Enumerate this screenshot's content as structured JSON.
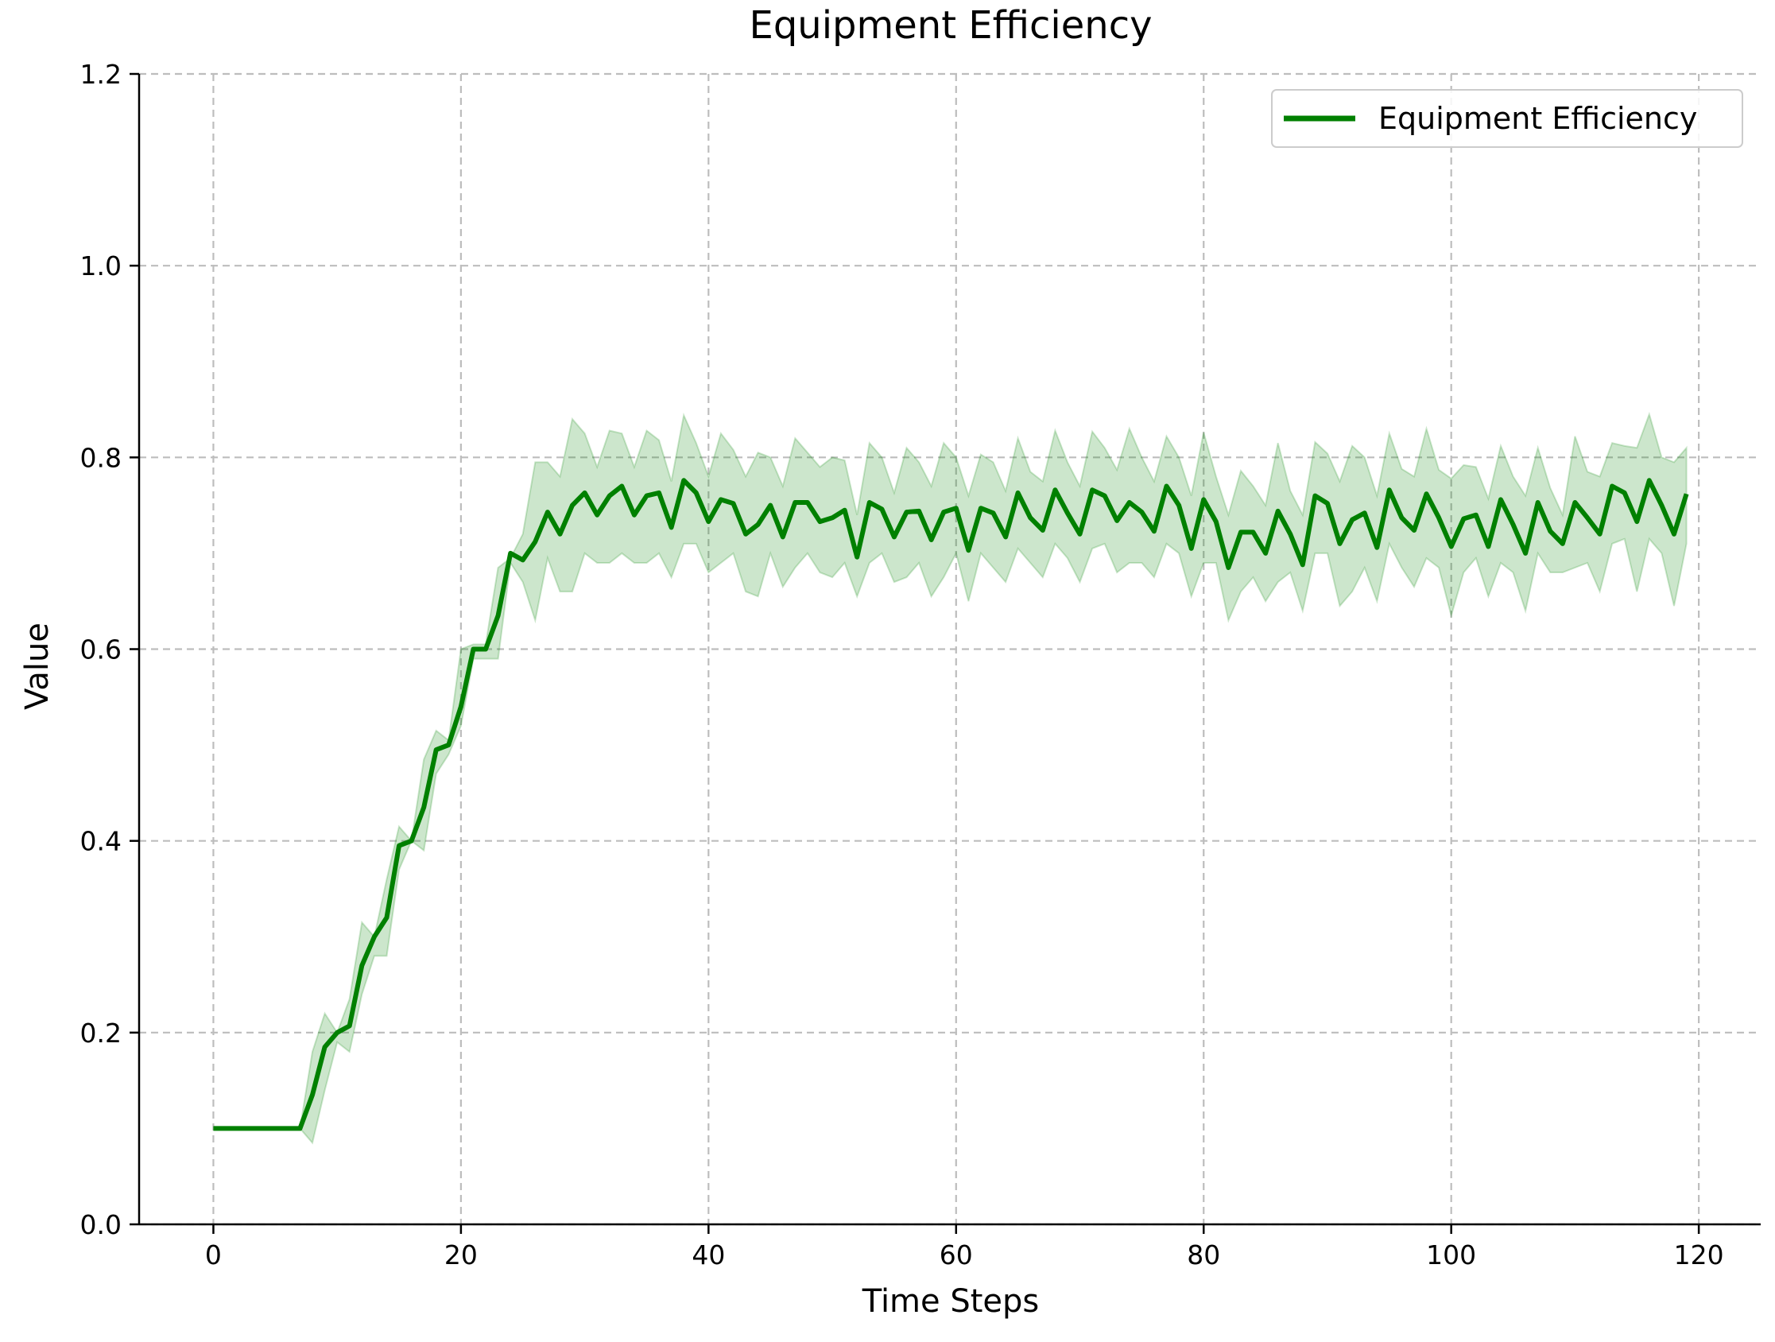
{
  "chart_data": {
    "type": "line",
    "title": "Equipment Efficiency",
    "xlabel": "Time Steps",
    "ylabel": "Value",
    "xlim": [
      -6,
      125
    ],
    "ylim": [
      0,
      1.2
    ],
    "xticks": [
      0,
      20,
      40,
      60,
      80,
      100,
      120
    ],
    "yticks": [
      0.0,
      0.2,
      0.4,
      0.6,
      0.8,
      1.0,
      1.2
    ],
    "xtick_labels": [
      "0",
      "20",
      "40",
      "60",
      "80",
      "100",
      "120"
    ],
    "ytick_labels": [
      "0.0",
      "0.2",
      "0.4",
      "0.6",
      "0.8",
      "1.0",
      "1.2"
    ],
    "grid": true,
    "legend_position": "top-right",
    "colors": {
      "line": "#008000",
      "band": "#008000"
    },
    "series": [
      {
        "name": "Equipment Efficiency",
        "x": [
          0,
          1,
          2,
          3,
          4,
          5,
          6,
          7,
          8,
          9,
          10,
          11,
          12,
          13,
          14,
          15,
          16,
          17,
          18,
          19,
          20,
          21,
          22,
          23,
          24,
          25,
          26,
          27,
          28,
          29,
          30,
          31,
          32,
          33,
          34,
          35,
          36,
          37,
          38,
          39,
          40,
          41,
          42,
          43,
          44,
          45,
          46,
          47,
          48,
          49,
          50,
          51,
          52,
          53,
          54,
          55,
          56,
          57,
          58,
          59,
          60,
          61,
          62,
          63,
          64,
          65,
          66,
          67,
          68,
          69,
          70,
          71,
          72,
          73,
          74,
          75,
          76,
          77,
          78,
          79,
          80,
          81,
          82,
          83,
          84,
          85,
          86,
          87,
          88,
          89,
          90,
          91,
          92,
          93,
          94,
          95,
          96,
          97,
          98,
          99,
          100,
          101,
          102,
          103,
          104,
          105,
          106,
          107,
          108,
          109,
          110,
          111,
          112,
          113,
          114,
          115,
          116,
          117,
          118,
          119
        ],
        "y": [
          0.1,
          0.1,
          0.1,
          0.1,
          0.1,
          0.1,
          0.1,
          0.1,
          0.135,
          0.185,
          0.2,
          0.207,
          0.27,
          0.3,
          0.32,
          0.395,
          0.4,
          0.435,
          0.495,
          0.5,
          0.54,
          0.6,
          0.6,
          0.635,
          0.7,
          0.693,
          0.712,
          0.743,
          0.72,
          0.75,
          0.763,
          0.74,
          0.76,
          0.77,
          0.74,
          0.76,
          0.763,
          0.727,
          0.776,
          0.763,
          0.733,
          0.756,
          0.752,
          0.72,
          0.73,
          0.75,
          0.717,
          0.753,
          0.753,
          0.733,
          0.737,
          0.745,
          0.696,
          0.753,
          0.746,
          0.717,
          0.743,
          0.744,
          0.714,
          0.743,
          0.747,
          0.703,
          0.747,
          0.742,
          0.717,
          0.763,
          0.737,
          0.724,
          0.766,
          0.742,
          0.72,
          0.766,
          0.76,
          0.734,
          0.753,
          0.743,
          0.723,
          0.77,
          0.75,
          0.705,
          0.756,
          0.733,
          0.685,
          0.722,
          0.722,
          0.7,
          0.744,
          0.72,
          0.688,
          0.76,
          0.752,
          0.71,
          0.735,
          0.742,
          0.706,
          0.766,
          0.737,
          0.724,
          0.762,
          0.737,
          0.707,
          0.736,
          0.74,
          0.707,
          0.756,
          0.73,
          0.7,
          0.753,
          0.723,
          0.71,
          0.753,
          0.737,
          0.72,
          0.77,
          0.763,
          0.733,
          0.776,
          0.75,
          0.72,
          0.762
        ],
        "lower": [
          0.1,
          0.1,
          0.1,
          0.1,
          0.1,
          0.1,
          0.1,
          0.1,
          0.085,
          0.14,
          0.19,
          0.18,
          0.24,
          0.28,
          0.28,
          0.37,
          0.4,
          0.39,
          0.47,
          0.49,
          0.52,
          0.59,
          0.59,
          0.59,
          0.69,
          0.67,
          0.63,
          0.695,
          0.66,
          0.66,
          0.7,
          0.69,
          0.69,
          0.7,
          0.69,
          0.69,
          0.7,
          0.675,
          0.71,
          0.71,
          0.68,
          0.69,
          0.7,
          0.66,
          0.655,
          0.7,
          0.665,
          0.685,
          0.7,
          0.68,
          0.675,
          0.69,
          0.655,
          0.69,
          0.7,
          0.67,
          0.675,
          0.69,
          0.655,
          0.675,
          0.7,
          0.65,
          0.7,
          0.685,
          0.67,
          0.705,
          0.69,
          0.675,
          0.71,
          0.695,
          0.67,
          0.705,
          0.71,
          0.68,
          0.69,
          0.69,
          0.675,
          0.71,
          0.7,
          0.655,
          0.69,
          0.69,
          0.63,
          0.66,
          0.675,
          0.65,
          0.67,
          0.68,
          0.64,
          0.7,
          0.7,
          0.645,
          0.66,
          0.685,
          0.65,
          0.71,
          0.685,
          0.665,
          0.695,
          0.685,
          0.635,
          0.68,
          0.695,
          0.655,
          0.69,
          0.68,
          0.64,
          0.7,
          0.68,
          0.68,
          0.685,
          0.69,
          0.66,
          0.71,
          0.715,
          0.66,
          0.715,
          0.7,
          0.645,
          0.71
        ],
        "upper": [
          0.1,
          0.1,
          0.1,
          0.1,
          0.1,
          0.1,
          0.1,
          0.1,
          0.18,
          0.22,
          0.2,
          0.235,
          0.315,
          0.3,
          0.36,
          0.415,
          0.4,
          0.485,
          0.515,
          0.505,
          0.6,
          0.605,
          0.605,
          0.685,
          0.695,
          0.72,
          0.795,
          0.795,
          0.78,
          0.84,
          0.825,
          0.79,
          0.828,
          0.825,
          0.79,
          0.828,
          0.818,
          0.775,
          0.844,
          0.815,
          0.78,
          0.825,
          0.808,
          0.78,
          0.805,
          0.8,
          0.77,
          0.82,
          0.805,
          0.79,
          0.8,
          0.797,
          0.74,
          0.815,
          0.8,
          0.763,
          0.81,
          0.795,
          0.77,
          0.815,
          0.8,
          0.76,
          0.803,
          0.795,
          0.765,
          0.82,
          0.785,
          0.775,
          0.828,
          0.795,
          0.77,
          0.827,
          0.81,
          0.787,
          0.83,
          0.8,
          0.775,
          0.822,
          0.8,
          0.76,
          0.826,
          0.78,
          0.74,
          0.786,
          0.77,
          0.75,
          0.815,
          0.765,
          0.74,
          0.816,
          0.804,
          0.775,
          0.812,
          0.8,
          0.76,
          0.825,
          0.788,
          0.78,
          0.83,
          0.787,
          0.778,
          0.792,
          0.79,
          0.757,
          0.812,
          0.78,
          0.76,
          0.81,
          0.768,
          0.74,
          0.822,
          0.785,
          0.78,
          0.815,
          0.812,
          0.81,
          0.845,
          0.8,
          0.795,
          0.81
        ]
      }
    ]
  }
}
